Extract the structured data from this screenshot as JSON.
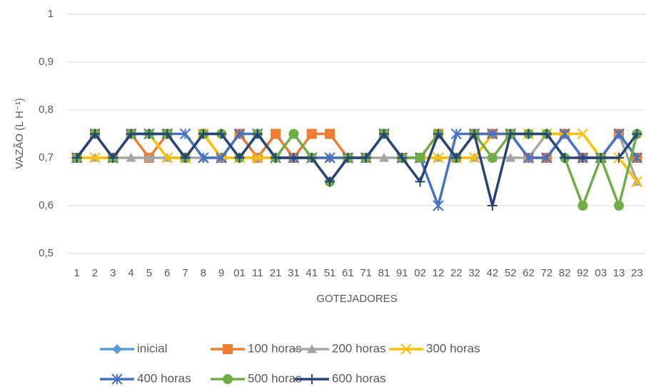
{
  "chart_data": {
    "type": "line",
    "ylabel": "VAZÃO (L H⁻¹)",
    "xlabel": "GOTEJADORES",
    "categories": [
      "1",
      "2",
      "3",
      "4",
      "5",
      "6",
      "7",
      "8",
      "9",
      "01",
      "11",
      "21",
      "31",
      "41",
      "51",
      "61",
      "71",
      "81",
      "91",
      "02",
      "12",
      "22",
      "32",
      "42",
      "52",
      "62",
      "72",
      "82",
      "92",
      "03",
      "13",
      "23"
    ],
    "ylim": [
      0.5,
      1
    ],
    "yticks": [
      {
        "value": 0.5,
        "label": "0,5"
      },
      {
        "value": 0.6,
        "label": "0,6"
      },
      {
        "value": 0.7,
        "label": "0,7"
      },
      {
        "value": 0.8,
        "label": "0,8"
      },
      {
        "value": 0.9,
        "label": "0,9"
      },
      1
    ],
    "grid": true,
    "legend": "bottom",
    "series": [
      {
        "name": "inicial",
        "color": "#5B9BD5",
        "marker": "diamond",
        "values": [
          0.7,
          0.75,
          0.7,
          0.75,
          0.75,
          0.75,
          0.7,
          0.75,
          0.7,
          0.75,
          0.7,
          0.75,
          0.7,
          0.7,
          0.7,
          0.7,
          0.7,
          0.75,
          0.7,
          0.7,
          0.75,
          0.7,
          0.75,
          0.75,
          0.75,
          0.7,
          0.7,
          0.75,
          0.7,
          0.7,
          0.75,
          0.7
        ]
      },
      {
        "name": "100 horas",
        "color": "#ED7D31",
        "marker": "square",
        "values": [
          0.7,
          0.75,
          0.7,
          0.75,
          0.7,
          0.75,
          0.7,
          0.75,
          0.7,
          0.75,
          0.7,
          0.75,
          0.7,
          0.75,
          0.75,
          0.7,
          0.7,
          0.75,
          0.7,
          0.7,
          0.75,
          0.7,
          0.75,
          0.75,
          0.75,
          0.7,
          0.7,
          0.75,
          0.7,
          0.7,
          0.75,
          0.7
        ]
      },
      {
        "name": "200 horas",
        "color": "#A5A5A5",
        "marker": "triangle",
        "values": [
          0.7,
          0.7,
          0.7,
          0.7,
          0.7,
          0.7,
          0.7,
          0.7,
          0.7,
          0.7,
          0.7,
          0.7,
          0.7,
          0.7,
          0.7,
          0.7,
          0.7,
          0.7,
          0.7,
          0.7,
          0.7,
          0.7,
          0.7,
          0.7,
          0.7,
          0.7,
          0.75,
          0.75,
          0.7,
          0.7,
          0.75,
          0.65
        ]
      },
      {
        "name": "300 horas",
        "color": "#FFC000",
        "marker": "x",
        "values": [
          0.7,
          0.7,
          0.7,
          0.75,
          0.75,
          0.7,
          0.7,
          0.75,
          0.7,
          0.7,
          0.7,
          0.7,
          0.7,
          0.7,
          0.7,
          0.7,
          0.7,
          0.75,
          0.7,
          0.7,
          0.7,
          0.7,
          0.7,
          0.75,
          0.75,
          0.75,
          0.75,
          0.75,
          0.75,
          0.7,
          0.7,
          0.65
        ]
      },
      {
        "name": "400 horas",
        "color": "#4472C4",
        "marker": "star",
        "values": [
          0.7,
          0.75,
          0.7,
          0.75,
          0.75,
          0.75,
          0.75,
          0.7,
          0.7,
          0.75,
          0.75,
          0.7,
          0.7,
          0.7,
          0.7,
          0.7,
          0.7,
          0.75,
          0.7,
          0.7,
          0.6,
          0.75,
          0.75,
          0.75,
          0.75,
          0.7,
          0.7,
          0.75,
          0.7,
          0.7,
          0.75,
          0.7
        ]
      },
      {
        "name": "500 horas",
        "color": "#70AD47",
        "marker": "circle",
        "values": [
          0.7,
          0.75,
          0.7,
          0.75,
          0.75,
          0.75,
          0.7,
          0.75,
          0.75,
          0.7,
          0.75,
          0.7,
          0.75,
          0.7,
          0.65,
          0.7,
          0.7,
          0.75,
          0.7,
          0.7,
          0.75,
          0.7,
          0.75,
          0.7,
          0.75,
          0.75,
          0.75,
          0.7,
          0.6,
          0.7,
          0.6,
          0.75
        ]
      },
      {
        "name": "600 horas",
        "color": "#264478",
        "marker": "plus",
        "values": [
          0.7,
          0.75,
          0.7,
          0.75,
          0.75,
          0.75,
          0.7,
          0.75,
          0.75,
          0.7,
          0.75,
          0.7,
          0.7,
          0.7,
          0.65,
          0.7,
          0.7,
          0.75,
          0.7,
          0.65,
          0.75,
          0.7,
          0.75,
          0.6,
          0.75,
          0.75,
          0.75,
          0.7,
          0.7,
          0.7,
          0.7,
          0.75
        ]
      }
    ]
  }
}
